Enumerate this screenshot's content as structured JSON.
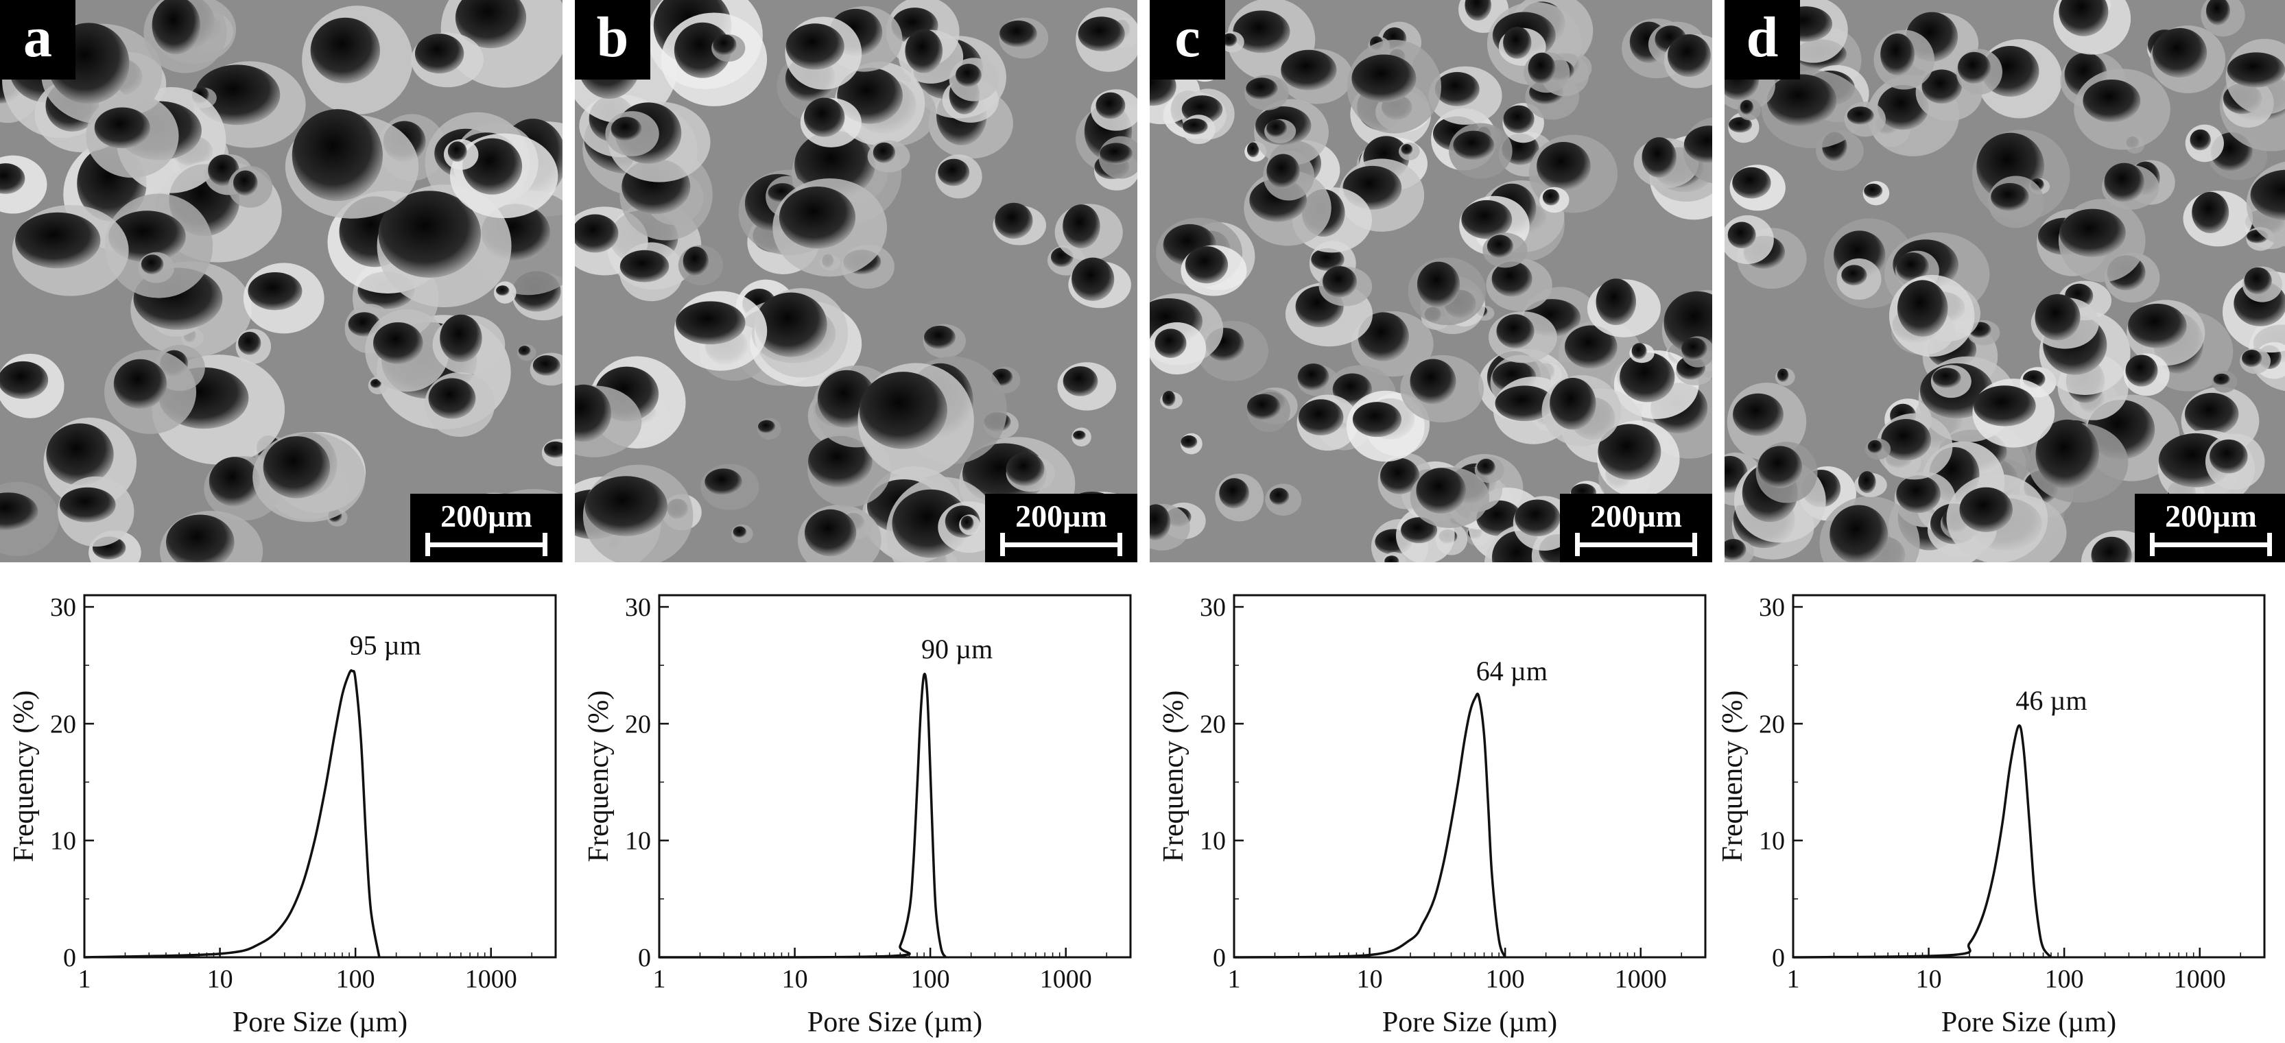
{
  "panels": [
    {
      "letter": "a",
      "scale_label": "200µm"
    },
    {
      "letter": "b",
      "scale_label": "200µm"
    },
    {
      "letter": "c",
      "scale_label": "200µm"
    },
    {
      "letter": "d",
      "scale_label": "200µm"
    }
  ],
  "chart_data": [
    {
      "type": "line",
      "xlabel": "Pore Size (µm)",
      "ylabel": "Frequency (%)",
      "x_scale": "log",
      "xlim": [
        1,
        3000
      ],
      "ylim": [
        0,
        31
      ],
      "x_ticks": [
        "1",
        "10",
        "100",
        "1000"
      ],
      "y_ticks": [
        "0",
        "10",
        "20",
        "30"
      ],
      "annotation": "95 µm",
      "peak_x": 95,
      "peak_y": 24.5,
      "x": [
        1,
        10,
        20,
        30,
        40,
        50,
        60,
        70,
        80,
        90,
        95,
        100,
        110,
        120,
        130,
        150
      ],
      "y": [
        0,
        0.3,
        1.2,
        3.0,
        6.0,
        10.0,
        14.5,
        19.0,
        22.5,
        24.3,
        24.5,
        23.8,
        18.5,
        10.0,
        4.0,
        0
      ]
    },
    {
      "type": "line",
      "xlabel": "Pore Size (µm)",
      "ylabel": "Frequency (%)",
      "x_scale": "log",
      "xlim": [
        1,
        3000
      ],
      "ylim": [
        0,
        31
      ],
      "x_ticks": [
        "1",
        "10",
        "100",
        "1000"
      ],
      "y_ticks": [
        "0",
        "10",
        "20",
        "30"
      ],
      "annotation": "90 µm",
      "peak_x": 90,
      "peak_y": 24.2,
      "x": [
        1,
        50,
        60,
        70,
        75,
        80,
        85,
        90,
        95,
        100,
        105,
        110,
        120,
        130
      ],
      "y": [
        0,
        0.1,
        1.0,
        4.0,
        8.0,
        14.5,
        21.0,
        24.2,
        22.5,
        16.0,
        9.0,
        4.0,
        0.8,
        0
      ]
    },
    {
      "type": "line",
      "xlabel": "Pore Size (µm)",
      "ylabel": "Frequency (%)",
      "x_scale": "log",
      "xlim": [
        1,
        3000
      ],
      "ylim": [
        0,
        31
      ],
      "x_ticks": [
        "1",
        "10",
        "100",
        "1000"
      ],
      "y_ticks": [
        "0",
        "10",
        "20",
        "30"
      ],
      "annotation": "64 µm",
      "peak_x": 64,
      "peak_y": 22.3,
      "x": [
        1,
        10,
        20,
        25,
        30,
        35,
        40,
        45,
        50,
        55,
        60,
        64,
        70,
        75,
        80,
        90,
        100
      ],
      "y": [
        0,
        0.2,
        1.5,
        3.0,
        5.0,
        8.0,
        11.5,
        15.0,
        18.5,
        21.0,
        22.2,
        22.3,
        19.0,
        13.0,
        7.0,
        1.5,
        0
      ]
    },
    {
      "type": "line",
      "xlabel": "Pore Size (µm)",
      "ylabel": "Frequency (%)",
      "x_scale": "log",
      "xlim": [
        1,
        3000
      ],
      "ylim": [
        0,
        31
      ],
      "x_ticks": [
        "1",
        "10",
        "100",
        "1000"
      ],
      "y_ticks": [
        "0",
        "10",
        "20",
        "30"
      ],
      "annotation": "46 µm",
      "peak_x": 46,
      "peak_y": 19.8,
      "x": [
        1,
        15,
        20,
        25,
        30,
        35,
        40,
        46,
        50,
        55,
        60,
        65,
        70,
        80
      ],
      "y": [
        0,
        0.2,
        1.2,
        3.5,
        7.0,
        11.5,
        16.5,
        19.8,
        18.0,
        12.0,
        6.0,
        2.5,
        0.8,
        0
      ]
    }
  ]
}
